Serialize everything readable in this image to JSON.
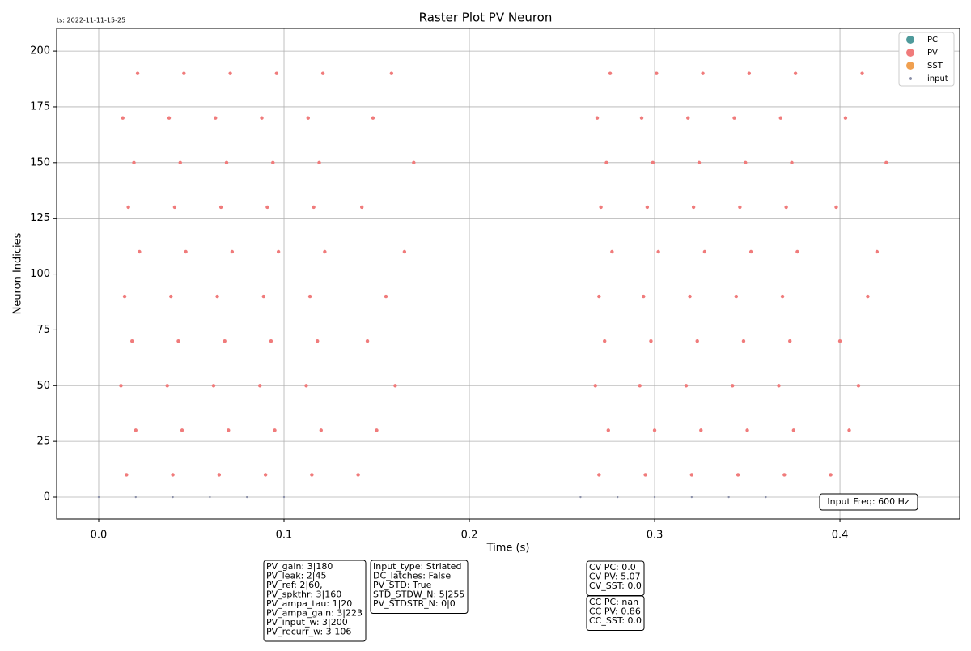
{
  "chart_data": {
    "type": "scatter",
    "title": "Raster Plot PV Neuron",
    "x_label": "Time (s)",
    "y_label": "Neuron Indicies",
    "timestamp": "ts: 2022-11-11-15-25",
    "input_freq": "Input Freq: 600 Hz",
    "xlim": [
      -0.0227,
      0.4646
    ],
    "ylim": [
      -9.8,
      210.2
    ],
    "xticks": [
      {
        "value": 0,
        "label": "0.0"
      },
      0.1,
      0.2,
      0.3,
      0.4
    ],
    "yticks": [
      0,
      25,
      50,
      75,
      100,
      125,
      150,
      175,
      200
    ],
    "grid": true,
    "legend": "upper right",
    "series": [
      {
        "name": "PC",
        "color": "#4e9a9b",
        "x": [],
        "y": []
      },
      {
        "name": "PV",
        "color": "#f07b7b",
        "x": [
          0.015,
          0.04,
          0.065,
          0.09,
          0.115,
          0.14,
          0.27,
          0.295,
          0.32,
          0.345,
          0.37,
          0.395,
          0.02,
          0.045,
          0.07,
          0.095,
          0.12,
          0.15,
          0.275,
          0.3,
          0.325,
          0.35,
          0.375,
          0.405,
          0.012,
          0.037,
          0.062,
          0.087,
          0.112,
          0.16,
          0.268,
          0.292,
          0.317,
          0.342,
          0.367,
          0.41,
          0.018,
          0.043,
          0.068,
          0.093,
          0.118,
          0.145,
          0.273,
          0.298,
          0.323,
          0.348,
          0.373,
          0.4,
          0.014,
          0.039,
          0.064,
          0.089,
          0.114,
          0.155,
          0.27,
          0.294,
          0.319,
          0.344,
          0.369,
          0.415,
          0.022,
          0.047,
          0.072,
          0.097,
          0.122,
          0.165,
          0.277,
          0.302,
          0.327,
          0.352,
          0.377,
          0.42,
          0.016,
          0.041,
          0.066,
          0.091,
          0.116,
          0.142,
          0.271,
          0.296,
          0.321,
          0.346,
          0.371,
          0.398,
          0.019,
          0.044,
          0.069,
          0.094,
          0.119,
          0.17,
          0.274,
          0.299,
          0.324,
          0.349,
          0.374,
          0.425,
          0.013,
          0.038,
          0.063,
          0.088,
          0.113,
          0.148,
          0.269,
          0.293,
          0.318,
          0.343,
          0.368,
          0.403,
          0.021,
          0.046,
          0.071,
          0.096,
          0.121,
          0.158,
          0.276,
          0.301,
          0.326,
          0.351,
          0.376,
          0.412
        ],
        "y": [
          10,
          10,
          10,
          10,
          10,
          10,
          10,
          10,
          10,
          10,
          10,
          10,
          30,
          30,
          30,
          30,
          30,
          30,
          30,
          30,
          30,
          30,
          30,
          30,
          50,
          50,
          50,
          50,
          50,
          50,
          50,
          50,
          50,
          50,
          50,
          50,
          70,
          70,
          70,
          70,
          70,
          70,
          70,
          70,
          70,
          70,
          70,
          70,
          90,
          90,
          90,
          90,
          90,
          90,
          90,
          90,
          90,
          90,
          90,
          90,
          110,
          110,
          110,
          110,
          110,
          110,
          110,
          110,
          110,
          110,
          110,
          110,
          130,
          130,
          130,
          130,
          130,
          130,
          130,
          130,
          130,
          130,
          130,
          130,
          150,
          150,
          150,
          150,
          150,
          150,
          150,
          150,
          150,
          150,
          150,
          150,
          170,
          170,
          170,
          170,
          170,
          170,
          170,
          170,
          170,
          170,
          170,
          170,
          190,
          190,
          190,
          190,
          190,
          190,
          190,
          190,
          190,
          190,
          190,
          190
        ]
      },
      {
        "name": "SST",
        "color": "#f0a050",
        "x": [],
        "y": []
      },
      {
        "name": "input",
        "color": "#8a8fa8",
        "x": [
          0,
          0.02,
          0.04,
          0.06,
          0.08,
          0.1,
          0.26,
          0.28,
          0.3,
          0.32,
          0.34,
          0.36
        ],
        "y": [
          0,
          0,
          0,
          0,
          0,
          0,
          0,
          0,
          0,
          0,
          0,
          0
        ]
      }
    ],
    "info_boxes": [
      [
        "PV_gain: 3|180",
        "PV_leak: 2|45",
        "PV_ref: 2|60,",
        "PV_spkthr: 3|160",
        "PV_ampa_tau: 1|20",
        "PV_ampa_gain: 3|223",
        "PV_input_w: 3|200",
        "PV_recurr_w: 3|106"
      ],
      [
        "Input_type: Striated",
        "DC_latches: False",
        "PV_STD: True",
        "STD_STDW_N: 5|255",
        "PV_STDSTR_N: 0|0"
      ],
      [
        "CV PC: 0.0",
        "CV PV: 5.07",
        "CV_SST: 0.0"
      ],
      [
        "CC PC: nan",
        "CC PV: 0.86",
        "CC_SST: 0.0"
      ]
    ]
  }
}
